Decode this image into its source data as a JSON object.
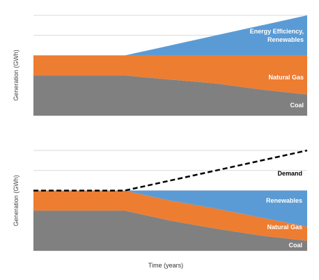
{
  "colors": {
    "coal": "#808080",
    "natural_gas": "#ED7D31",
    "renewables": "#5B9BD5",
    "demand": "#000000",
    "gridline": "#D9D9D9",
    "label_light": "#ffffff",
    "label_dark": "#000000"
  },
  "xlabel": "Time (years)",
  "chart_data": [
    {
      "type": "area",
      "stacked": true,
      "ylabel": "Generation (GWh)",
      "x": [
        0,
        1,
        2,
        3,
        4,
        5,
        6
      ],
      "ylim": [
        0,
        5
      ],
      "grid": true,
      "series": [
        {
          "name": "Coal",
          "key": "coal",
          "values": [
            2.0,
            2.0,
            2.0,
            1.8,
            1.6,
            1.3,
            1.05
          ]
        },
        {
          "name": "Natural Gas",
          "key": "natural_gas",
          "values": [
            1.0,
            1.0,
            1.0,
            1.2,
            1.4,
            1.7,
            1.95
          ]
        },
        {
          "name": "Energy Efficiency, Renewables",
          "key": "renewables",
          "values": [
            0,
            0,
            0,
            0.5,
            1.0,
            1.5,
            2.0
          ]
        }
      ],
      "labels": [
        {
          "lines": [
            "Energy Efficiency,",
            "Renewables"
          ],
          "color_key": "label_light"
        },
        {
          "lines": [
            "Natural Gas"
          ],
          "color_key": "label_light"
        },
        {
          "lines": [
            "Coal"
          ],
          "color_key": "label_light"
        }
      ]
    },
    {
      "type": "area",
      "stacked": true,
      "ylabel": "Generation (GWh)",
      "x": [
        0,
        1,
        2,
        3,
        4,
        5,
        6
      ],
      "ylim": [
        0,
        5
      ],
      "grid": true,
      "series": [
        {
          "name": "Coal",
          "key": "coal",
          "values": [
            2.0,
            2.0,
            2.0,
            1.5,
            1.1,
            0.75,
            0.5
          ]
        },
        {
          "name": "Natural Gas",
          "key": "natural_gas",
          "values": [
            1.0,
            1.0,
            1.0,
            1.0,
            1.0,
            0.9,
            0.7
          ]
        },
        {
          "name": "Renewables",
          "key": "renewables",
          "values": [
            0,
            0,
            0,
            0.5,
            0.9,
            1.35,
            1.8
          ]
        }
      ],
      "demand": {
        "name": "Demand",
        "values": [
          3.0,
          3.0,
          3.0,
          3.5,
          4.0,
          4.5,
          5.0
        ]
      },
      "labels": [
        {
          "lines": [
            "Demand"
          ],
          "color_key": "label_dark"
        },
        {
          "lines": [
            "Renewables"
          ],
          "color_key": "label_light"
        },
        {
          "lines": [
            "Natural Gas"
          ],
          "color_key": "label_light"
        },
        {
          "lines": [
            "Coal"
          ],
          "color_key": "label_light"
        }
      ]
    }
  ]
}
